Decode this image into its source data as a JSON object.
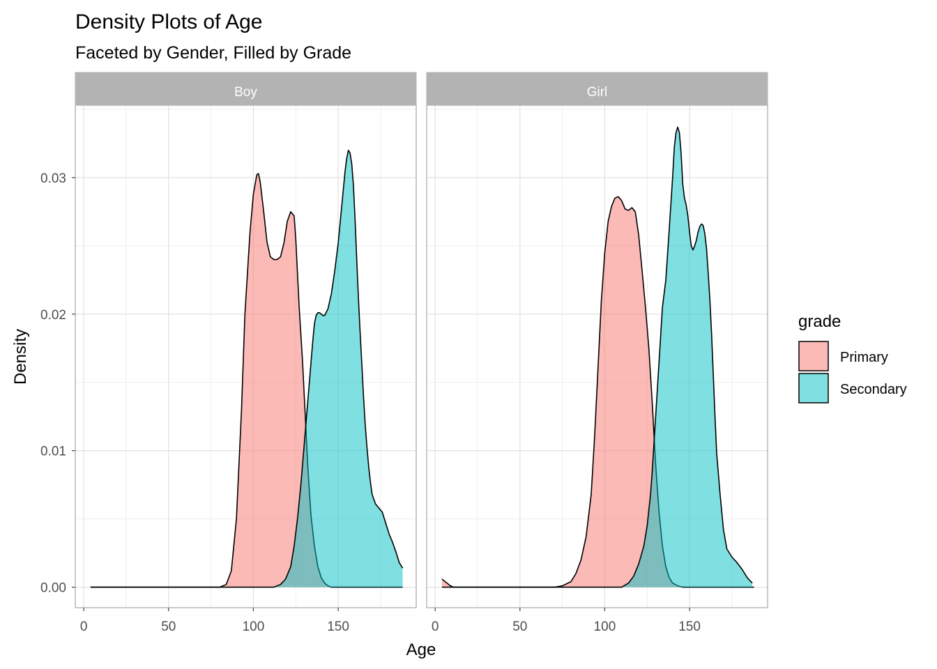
{
  "chart_data": {
    "type": "area",
    "title": "Density Plots of Age",
    "subtitle": "Faceted by Gender, Filled by Grade",
    "xlabel": "Age",
    "ylabel": "Density",
    "xlim": [
      -5,
      196
    ],
    "ylim": [
      -0.0015,
      0.0353
    ],
    "x_ticks": [
      0,
      50,
      100,
      150
    ],
    "y_ticks": [
      0.0,
      0.01,
      0.02,
      0.03
    ],
    "y_tick_labels": [
      "0.00",
      "0.01",
      "0.02",
      "0.03"
    ],
    "grid": true,
    "legend": {
      "title": "grade",
      "position": "right",
      "entries": [
        "Primary",
        "Secondary"
      ]
    },
    "colors": {
      "Primary": "#F8766D",
      "Secondary": "#00BFC4",
      "strip": "#b3b3b3"
    },
    "fill_alpha": 0.5,
    "facets": [
      {
        "label": "Boy",
        "series": [
          {
            "name": "Primary",
            "x": [
              4,
              80,
              84,
              87,
              90,
              93,
              95,
              97,
              98,
              100,
              102,
              103,
              104,
              106,
              108,
              110,
              112,
              114,
              116,
              118,
              120,
              122,
              124,
              125,
              126,
              127,
              128,
              129,
              130,
              131,
              132,
              133,
              134,
              136,
              138,
              140,
              142,
              144,
              146,
              150,
              155,
              188
            ],
            "y": [
              0,
              0,
              0.0002,
              0.0012,
              0.005,
              0.013,
              0.02,
              0.024,
              0.026,
              0.0288,
              0.0302,
              0.0303,
              0.0297,
              0.0276,
              0.0253,
              0.0242,
              0.024,
              0.024,
              0.0242,
              0.0252,
              0.0268,
              0.0275,
              0.0272,
              0.0255,
              0.023,
              0.0205,
              0.0185,
              0.0165,
              0.014,
              0.0115,
              0.009,
              0.007,
              0.0052,
              0.003,
              0.0015,
              0.0007,
              0.0003,
              0.0001,
              0,
              0,
              0,
              0
            ]
          },
          {
            "name": "Secondary",
            "x": [
              4,
              112,
              116,
              119,
              122,
              124,
              126,
              128,
              129,
              130,
              131,
              132,
              133,
              134,
              135,
              136,
              137,
              138,
              139,
              140,
              141,
              142,
              144,
              146,
              148,
              150,
              152,
              154,
              155,
              156,
              157,
              158,
              159,
              160,
              161,
              162,
              163,
              164,
              165,
              166,
              167,
              168,
              169,
              170,
              172,
              174,
              176,
              178,
              180,
              182,
              184,
              186,
              188
            ],
            "y": [
              0,
              0,
              0.0002,
              0.0006,
              0.0015,
              0.003,
              0.005,
              0.0075,
              0.009,
              0.0105,
              0.012,
              0.0135,
              0.015,
              0.0165,
              0.018,
              0.0193,
              0.0199,
              0.0201,
              0.0201,
              0.02,
              0.0199,
              0.0199,
              0.0204,
              0.0215,
              0.0232,
              0.0252,
              0.0278,
              0.0304,
              0.0314,
              0.032,
              0.0318,
              0.031,
              0.0294,
              0.0268,
              0.0238,
              0.021,
              0.0185,
              0.0162,
              0.0138,
              0.0118,
              0.0102,
              0.0088,
              0.0077,
              0.0068,
              0.0061,
              0.0058,
              0.0055,
              0.0047,
              0.0039,
              0.0033,
              0.0026,
              0.0018,
              0.0014
            ]
          }
        ]
      },
      {
        "label": "Girl",
        "series": [
          {
            "name": "Primary",
            "x": [
              4,
              5,
              7,
              9,
              11,
              13,
              15,
              70,
              75,
              80,
              83,
              86,
              89,
              92,
              94,
              96,
              98,
              100,
              102,
              104,
              106,
              108,
              110,
              112,
              114,
              116,
              118,
              120,
              122,
              124,
              126,
              128,
              130,
              132,
              134,
              136,
              138,
              140,
              143,
              146,
              150,
              188
            ],
            "y": [
              0.0006,
              0.0005,
              0.0003,
              0.0001,
              0,
              0,
              0,
              0,
              0.0001,
              0.0004,
              0.001,
              0.002,
              0.0037,
              0.0068,
              0.011,
              0.016,
              0.021,
              0.0245,
              0.0268,
              0.0279,
              0.0285,
              0.0286,
              0.0283,
              0.0277,
              0.0276,
              0.0278,
              0.0275,
              0.0258,
              0.0232,
              0.0205,
              0.0175,
              0.0135,
              0.009,
              0.0055,
              0.003,
              0.0015,
              0.0007,
              0.0003,
              0.0001,
              0,
              0,
              0
            ]
          },
          {
            "name": "Secondary",
            "x": [
              4,
              110,
              114,
              117,
              120,
              123,
              125,
              127,
              128,
              129,
              130,
              131,
              132,
              133,
              134,
              135,
              136,
              138,
              140,
              141,
              142,
              143,
              144,
              145,
              146,
              147,
              148,
              149,
              150,
              151,
              152,
              153,
              154,
              155,
              156,
              157,
              158,
              159,
              160,
              161,
              162,
              163,
              164,
              165,
              166,
              168,
              170,
              172,
              175,
              178,
              181,
              184,
              187
            ],
            "y": [
              0,
              0,
              0.0003,
              0.0008,
              0.0017,
              0.003,
              0.0045,
              0.0068,
              0.0085,
              0.0105,
              0.0125,
              0.0145,
              0.0165,
              0.0185,
              0.0205,
              0.0215,
              0.0225,
              0.0262,
              0.03,
              0.0322,
              0.0333,
              0.0337,
              0.0333,
              0.0318,
              0.0295,
              0.0285,
              0.028,
              0.0272,
              0.026,
              0.025,
              0.0247,
              0.025,
              0.0254,
              0.026,
              0.0264,
              0.0266,
              0.0265,
              0.0259,
              0.0248,
              0.023,
              0.021,
              0.0185,
              0.0155,
              0.0125,
              0.0098,
              0.0068,
              0.0042,
              0.0028,
              0.0022,
              0.0018,
              0.0013,
              0.0007,
              0.0003
            ]
          }
        ]
      }
    ]
  }
}
